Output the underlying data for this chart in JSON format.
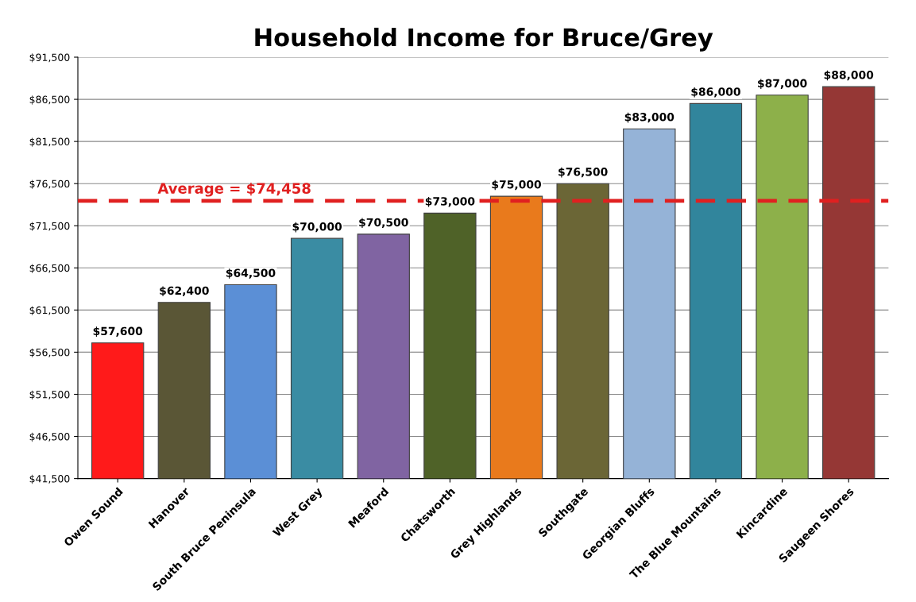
{
  "chart_data": {
    "type": "bar",
    "title": "Household Income for Bruce/Grey",
    "categories": [
      "Owen Sound",
      "Hanover",
      "South Bruce Peninsula",
      "West Grey",
      "Meaford",
      "Chatsworth",
      "Grey Highlands",
      "Southgate",
      "Georgian Bluffs",
      "The Blue Mountains",
      "Kincardine",
      "Saugeen Shores"
    ],
    "values": [
      57600,
      62400,
      64500,
      70000,
      70500,
      73000,
      75000,
      76500,
      83000,
      86000,
      87000,
      88000
    ],
    "colors": [
      "#ff1a1a",
      "#5a5636",
      "#5b8fd6",
      "#3a8ca3",
      "#8064a2",
      "#4f6228",
      "#e97a1c",
      "#6b6636",
      "#95b3d7",
      "#31859c",
      "#8db04a",
      "#953735"
    ],
    "value_labels": [
      "$57,600",
      "$62,400",
      "$64,500",
      "$70,000",
      "$70,500",
      "$73,000",
      "$75,000",
      "$76,500",
      "$83,000",
      "$86,000",
      "$87,000",
      "$88,000"
    ],
    "ylim": [
      41500,
      91500
    ],
    "yticks": [
      {
        "value": 41500,
        "label": "$41,500"
      },
      {
        "value": 46500,
        "label": "$46,500"
      },
      {
        "value": 51500,
        "label": "$51,500"
      },
      {
        "value": 56500,
        "label": "$56,500"
      },
      {
        "value": 61500,
        "label": "$61,500"
      },
      {
        "value": 66500,
        "label": "$66,500"
      },
      {
        "value": 71500,
        "label": "$71,500"
      },
      {
        "value": 76500,
        "label": "$76,500"
      },
      {
        "value": 81500,
        "label": "$81,500"
      },
      {
        "value": 86500,
        "label": "$86,500"
      },
      {
        "value": 91500,
        "label": "$91,500"
      }
    ],
    "ref_lines": [
      {
        "axis": "y",
        "value": 74458,
        "label": "Average = $74,458",
        "color": "#e02020",
        "line_style": "dashed"
      }
    ],
    "grid": "y",
    "legend": false
  }
}
